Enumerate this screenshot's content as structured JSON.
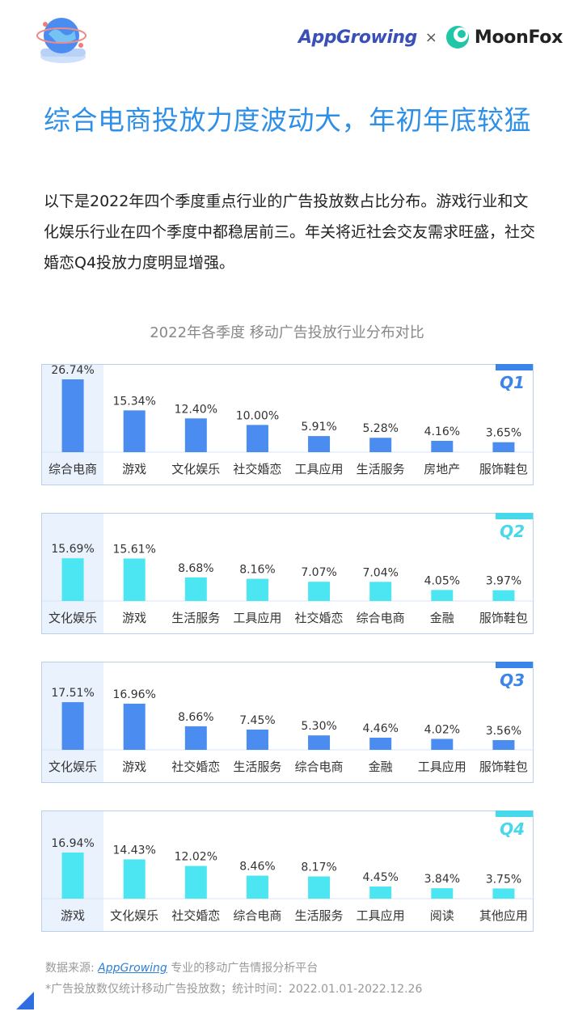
{
  "brand": {
    "appgrowing": "AppGrowing",
    "times": "×",
    "moonfox": "MoonFox"
  },
  "headline": "综合电商投放力度波动大，年初年底较猛",
  "intro": "以下是2022年四个季度重点行业的广告投放数占比分布。游戏行业和文化娱乐行业在四个季度中都稳居前三。年关将近社会交友需求旺盛，社交婚恋Q4投放力度明显增强。",
  "colors": {
    "q1_q3_bar": "#4a8cf0",
    "q2_q4_bar": "#4ce6f2",
    "q1_q3_label": "#3b84ea",
    "q2_q4_label": "#47d8ea",
    "highlight": "#eaf2fd",
    "border": "#b7d1ee"
  },
  "chart_data": [
    {
      "type": "bar",
      "title": "2022年各季度 移动广告投放行业分布对比",
      "quarter": "Q1",
      "categories": [
        "综合电商",
        "游戏",
        "文化娱乐",
        "社交婚恋",
        "工具应用",
        "生活服务",
        "房地产",
        "服饰鞋包"
      ],
      "values": [
        26.74,
        15.34,
        12.4,
        10.0,
        5.91,
        5.28,
        4.16,
        3.65
      ],
      "labels": [
        "26.74%",
        "15.34%",
        "12.40%",
        "10.00%",
        "5.91%",
        "5.28%",
        "4.16%",
        "3.65%"
      ]
    },
    {
      "type": "bar",
      "quarter": "Q2",
      "categories": [
        "文化娱乐",
        "游戏",
        "生活服务",
        "工具应用",
        "社交婚恋",
        "综合电商",
        "金融",
        "服饰鞋包"
      ],
      "values": [
        15.69,
        15.61,
        8.68,
        8.16,
        7.07,
        7.04,
        4.05,
        3.97
      ],
      "labels": [
        "15.69%",
        "15.61%",
        "8.68%",
        "8.16%",
        "7.07%",
        "7.04%",
        "4.05%",
        "3.97%"
      ]
    },
    {
      "type": "bar",
      "quarter": "Q3",
      "categories": [
        "文化娱乐",
        "游戏",
        "社交婚恋",
        "生活服务",
        "综合电商",
        "金融",
        "工具应用",
        "服饰鞋包"
      ],
      "values": [
        17.51,
        16.96,
        8.66,
        7.45,
        5.3,
        4.46,
        4.02,
        3.56
      ],
      "labels": [
        "17.51%",
        "16.96%",
        "8.66%",
        "7.45%",
        "5.30%",
        "4.46%",
        "4.02%",
        "3.56%"
      ]
    },
    {
      "type": "bar",
      "quarter": "Q4",
      "categories": [
        "游戏",
        "文化娱乐",
        "社交婚恋",
        "综合电商",
        "生活服务",
        "工具应用",
        "阅读",
        "其他应用"
      ],
      "values": [
        16.94,
        14.43,
        12.02,
        8.46,
        8.17,
        4.45,
        3.84,
        3.75
      ],
      "labels": [
        "16.94%",
        "14.43%",
        "12.02%",
        "8.46%",
        "8.17%",
        "4.45%",
        "3.84%",
        "3.75%"
      ]
    }
  ],
  "footer": {
    "source_prefix": "数据来源: ",
    "source_link": "AppGrowing",
    "source_suffix": " 专业的移动广告情报分析平台",
    "note": "*广告投放数仅统计移动广告投放数；统计时间：2022.01.01-2022.12.26"
  }
}
